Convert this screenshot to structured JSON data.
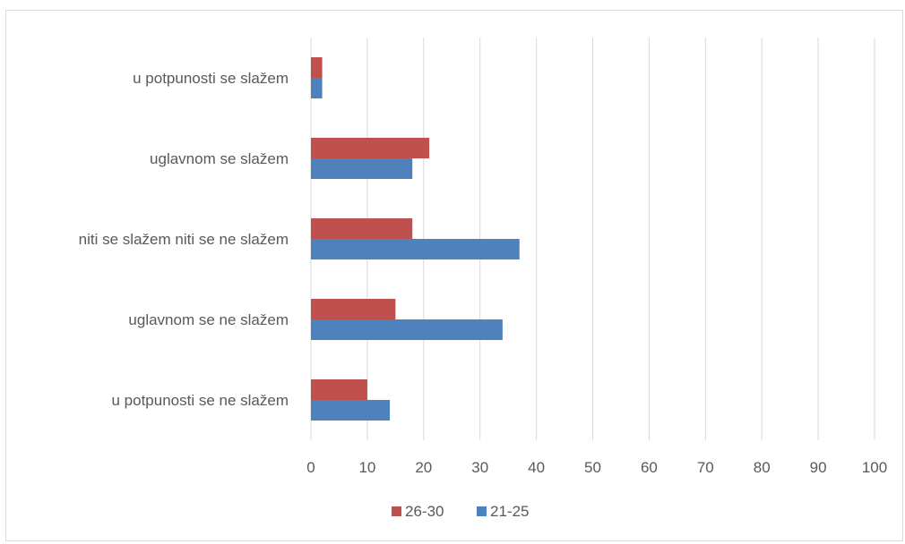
{
  "chart_data": {
    "type": "bar",
    "orientation": "horizontal",
    "categories": [
      "u potpunosti se slažem",
      "uglavnom se slažem",
      "niti se slažem niti se ne slažem",
      "uglavnom se ne slažem",
      "u potpunosti se ne slažem"
    ],
    "series": [
      {
        "name": "26-30",
        "color": "#c0504d",
        "values": [
          2,
          21,
          18,
          15,
          10
        ]
      },
      {
        "name": "21-25",
        "color": "#4f81bd",
        "values": [
          2,
          18,
          37,
          34,
          14
        ]
      }
    ],
    "xlim": [
      0,
      100
    ],
    "xticks": [
      "0",
      "10",
      "20",
      "30",
      "40",
      "50",
      "60",
      "70",
      "80",
      "90",
      "100"
    ],
    "grid": true,
    "legend_position": "bottom",
    "legend_order": [
      "26-30",
      "21-25"
    ]
  }
}
